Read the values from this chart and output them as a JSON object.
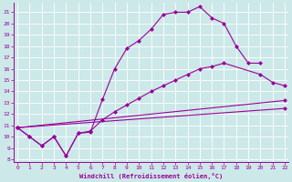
{
  "xlabel": "Windchill (Refroidissement éolien,°C)",
  "background_color": "#cce8e8",
  "line_color": "#990099",
  "grid_color": "#aacccc",
  "ylim": [
    7.8,
    21.8
  ],
  "xlim": [
    -0.3,
    22.3
  ],
  "yticks": [
    8,
    9,
    10,
    11,
    12,
    13,
    14,
    15,
    16,
    17,
    18,
    19,
    20,
    21
  ],
  "xticks": [
    0,
    1,
    2,
    3,
    4,
    5,
    6,
    7,
    8,
    9,
    10,
    11,
    12,
    13,
    14,
    15,
    16,
    17,
    18,
    19,
    20,
    21,
    22
  ],
  "line1_x": [
    0,
    1,
    2,
    3,
    4,
    5,
    6,
    7,
    8,
    9,
    10,
    11,
    12,
    13,
    14,
    15,
    16,
    17,
    18,
    19,
    20
  ],
  "line1_y": [
    10.8,
    10.0,
    9.2,
    10.0,
    8.3,
    10.3,
    10.4,
    13.3,
    16.0,
    17.8,
    18.5,
    19.5,
    20.8,
    21.0,
    21.0,
    21.5,
    20.5,
    20.0,
    18.0,
    16.5,
    16.5
  ],
  "line2_x": [
    0,
    1,
    2,
    3,
    4,
    5,
    6,
    7,
    8,
    9,
    10,
    11,
    12,
    13,
    14,
    15,
    16,
    17,
    20,
    21,
    22
  ],
  "line2_y": [
    10.8,
    10.0,
    9.2,
    10.0,
    8.3,
    10.3,
    10.5,
    11.5,
    12.2,
    12.8,
    13.4,
    14.0,
    14.5,
    15.0,
    15.5,
    16.0,
    16.2,
    16.5,
    15.5,
    14.8,
    14.5
  ],
  "line3_x": [
    0,
    22
  ],
  "line3_y": [
    10.8,
    13.2
  ],
  "line4_x": [
    0,
    22
  ],
  "line4_y": [
    10.8,
    12.5
  ]
}
